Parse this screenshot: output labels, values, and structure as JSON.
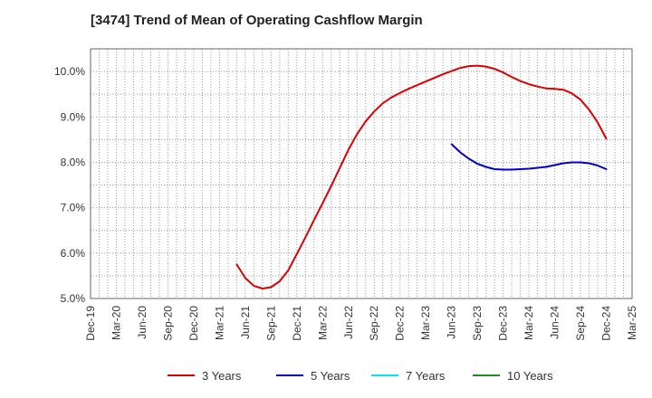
{
  "chart_data": {
    "type": "line",
    "title": "[3474]  Trend of Mean of Operating Cashflow Margin",
    "xlabel": "",
    "ylabel": "",
    "x_ticks": [
      "Dec-19",
      "Mar-20",
      "Jun-20",
      "Sep-20",
      "Dec-20",
      "Mar-21",
      "Jun-21",
      "Sep-21",
      "Dec-21",
      "Mar-22",
      "Jun-22",
      "Sep-22",
      "Dec-22",
      "Mar-23",
      "Jun-23",
      "Sep-23",
      "Dec-23",
      "Mar-24",
      "Jun-24",
      "Sep-24",
      "Dec-24",
      "Mar-25"
    ],
    "y_ticks": [
      "5.0%",
      "6.0%",
      "7.0%",
      "8.0%",
      "9.0%",
      "10.0%"
    ],
    "ylim": [
      5.0,
      10.5
    ],
    "grid": true,
    "legend_position": "bottom",
    "series": [
      {
        "name": "3 Years",
        "color": "#dd0000",
        "x": [
          "May-21",
          "Jun-21",
          "Jul-21",
          "Aug-21",
          "Sep-21",
          "Oct-21",
          "Nov-21",
          "Dec-21",
          "Jan-22",
          "Feb-22",
          "Mar-22",
          "Apr-22",
          "May-22",
          "Jun-22",
          "Jul-22",
          "Aug-22",
          "Sep-22",
          "Oct-22",
          "Nov-22",
          "Dec-22",
          "Jan-23",
          "Feb-23",
          "Mar-23",
          "Apr-23",
          "May-23",
          "Jun-23",
          "Jul-23",
          "Aug-23",
          "Sep-23",
          "Oct-23",
          "Nov-23",
          "Dec-23",
          "Jan-24",
          "Feb-24",
          "Mar-24",
          "Apr-24",
          "May-24",
          "Jun-24",
          "Jul-24",
          "Aug-24",
          "Sep-24",
          "Oct-24",
          "Nov-24",
          "Dec-24"
        ],
        "values": [
          5.75,
          5.45,
          5.28,
          5.22,
          5.25,
          5.38,
          5.62,
          5.98,
          6.35,
          6.73,
          7.1,
          7.48,
          7.88,
          8.28,
          8.62,
          8.9,
          9.12,
          9.3,
          9.43,
          9.53,
          9.62,
          9.7,
          9.78,
          9.86,
          9.94,
          10.01,
          10.08,
          10.12,
          10.13,
          10.11,
          10.06,
          9.98,
          9.88,
          9.79,
          9.72,
          9.67,
          9.63,
          9.62,
          9.6,
          9.52,
          9.38,
          9.16,
          8.88,
          8.52
        ]
      },
      {
        "name": "5 Years",
        "color": "#0000cc",
        "x": [
          "Jun-23",
          "Jul-23",
          "Aug-23",
          "Sep-23",
          "Oct-23",
          "Nov-23",
          "Dec-23",
          "Jan-24",
          "Feb-24",
          "Mar-24",
          "Apr-24",
          "May-24",
          "Jun-24",
          "Jul-24",
          "Aug-24",
          "Sep-24",
          "Oct-24",
          "Nov-24",
          "Dec-24"
        ],
        "values": [
          8.4,
          8.22,
          8.08,
          7.97,
          7.9,
          7.85,
          7.84,
          7.84,
          7.85,
          7.86,
          7.88,
          7.9,
          7.94,
          7.98,
          8.0,
          8.0,
          7.98,
          7.93,
          7.85
        ]
      },
      {
        "name": "7 Years",
        "color": "#00e5ee",
        "x": [],
        "values": []
      },
      {
        "name": "10 Years",
        "color": "#228b22",
        "x": [],
        "values": []
      }
    ]
  }
}
